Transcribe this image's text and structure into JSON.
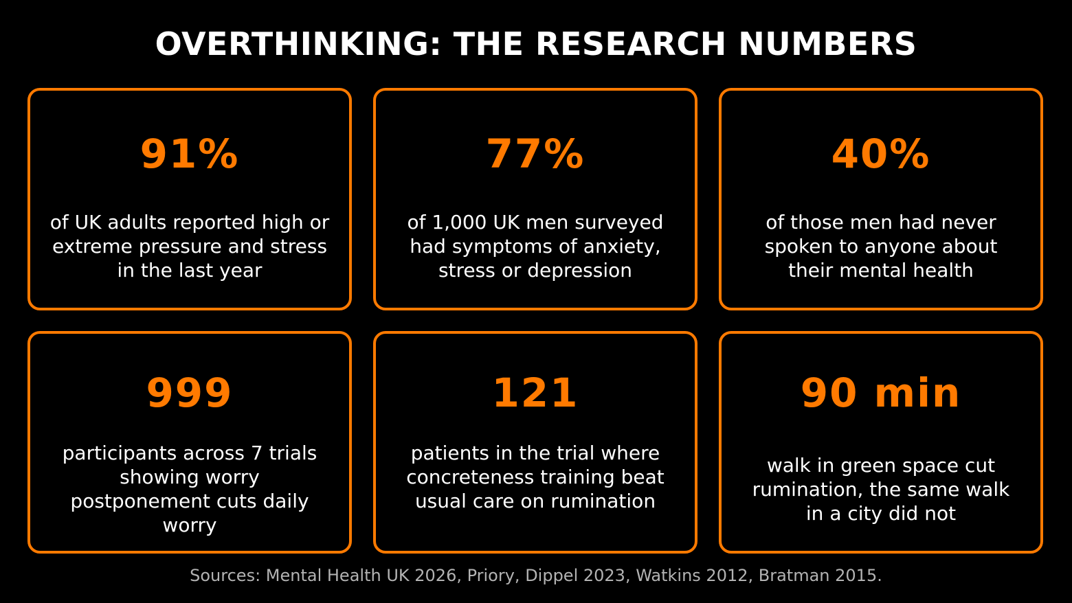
{
  "title": "OVERTHINKING: THE RESEARCH NUMBERS",
  "accent_color": "#ff7a00",
  "stats": [
    {
      "value": "91%",
      "description": "of UK adults reported high or extreme pressure and stress in the last year"
    },
    {
      "value": "77%",
      "description": "of 1,000 UK men surveyed had symptoms of anxiety, stress or depression"
    },
    {
      "value": "40%",
      "description": "of those men had never spoken to anyone about their mental health"
    },
    {
      "value": "999",
      "description": "participants across 7 trials showing worry postponement cuts daily worry"
    },
    {
      "value": "121",
      "description": "patients in the trial where concreteness training beat usual care on rumination"
    },
    {
      "value": "90 min",
      "description": "walk in green space cut rumination, the same walk in a city did not"
    }
  ],
  "sources": "Sources: Mental Health UK 2026, Priory, Dippel 2023, Watkins 2012, Bratman 2015."
}
